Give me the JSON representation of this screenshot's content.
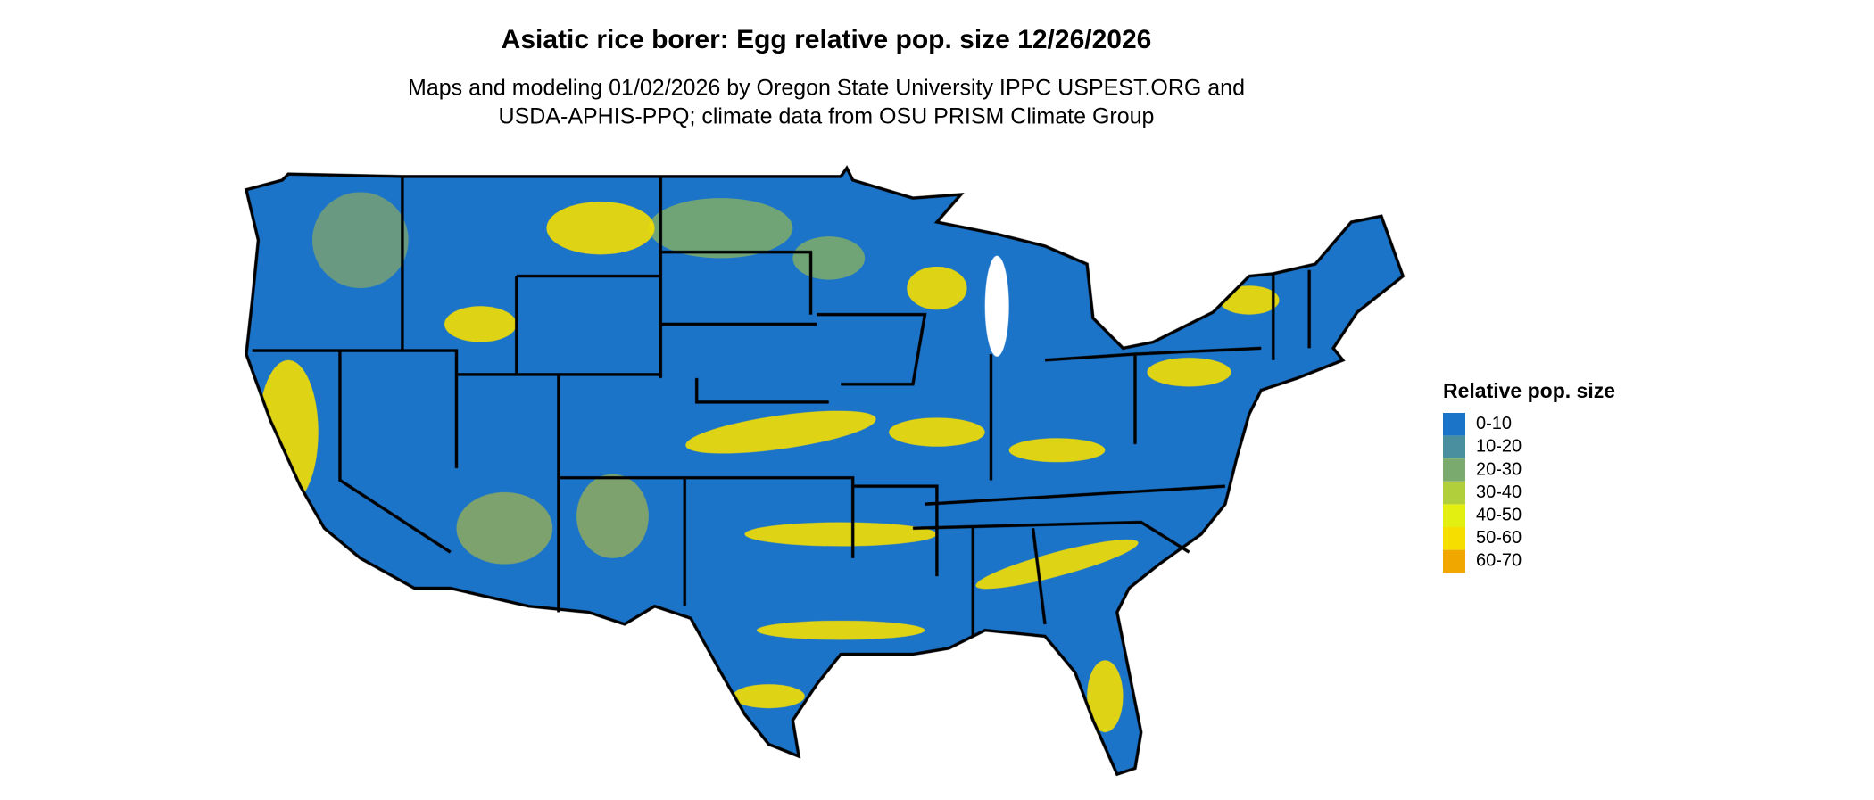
{
  "title": "Asiatic rice borer: Egg relative pop. size 12/26/2026",
  "subtitle": [
    "Maps and modeling 01/02/2026 by Oregon State University IPPC USPEST.ORG and",
    "USDA-APHIS-PPQ; climate data from OSU PRISM Climate Group"
  ],
  "legend": {
    "title": "Relative pop. size",
    "items": [
      {
        "label": "0-10",
        "color": "#1c74c9"
      },
      {
        "label": "10-20",
        "color": "#4a8fa0"
      },
      {
        "label": "20-30",
        "color": "#7aaa6e"
      },
      {
        "label": "30-40",
        "color": "#b1cf3a"
      },
      {
        "label": "40-50",
        "color": "#e3ef10"
      },
      {
        "label": "50-60",
        "color": "#f6de00"
      },
      {
        "label": "60-70",
        "color": "#f0a800"
      }
    ]
  }
}
